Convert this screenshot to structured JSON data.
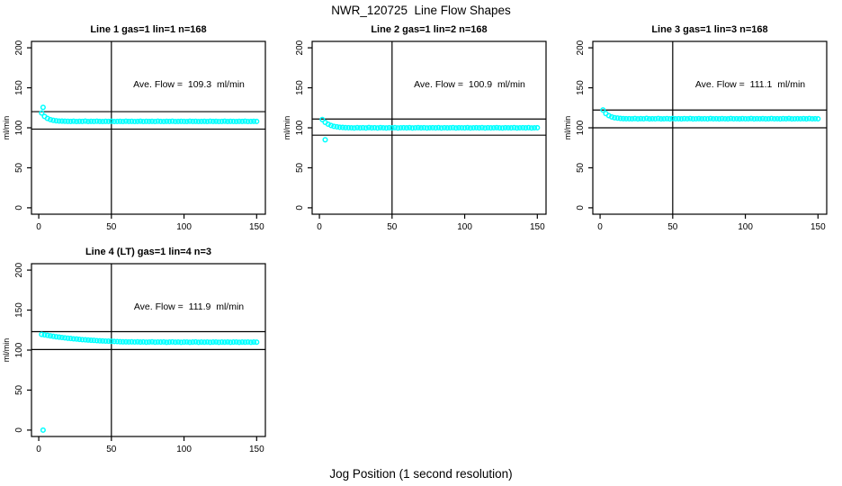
{
  "chart_data": {
    "type": "scatter",
    "title": "NWR_120725  Line Flow Shapes",
    "xlabel": "Jog Position (1 second resolution)",
    "ylabel": "ml/min",
    "point_color": "#00FFFF",
    "axis_color": "#000000",
    "background": "#ffffff",
    "xlim": [
      -5,
      156
    ],
    "ylim": [
      -8,
      208
    ],
    "xticks": [
      0,
      50,
      100,
      150
    ],
    "yticks": [
      0,
      50,
      100,
      150,
      200
    ],
    "grid": "off",
    "legend": "none",
    "x": [
      2,
      4,
      6,
      8,
      10,
      12,
      14,
      16,
      18,
      20,
      22,
      24,
      26,
      28,
      30,
      32,
      34,
      36,
      38,
      40,
      42,
      44,
      46,
      48,
      50,
      52,
      54,
      56,
      58,
      60,
      62,
      64,
      66,
      68,
      70,
      72,
      74,
      76,
      78,
      80,
      82,
      84,
      86,
      88,
      90,
      92,
      94,
      96,
      98,
      100,
      102,
      104,
      106,
      108,
      110,
      112,
      114,
      116,
      118,
      120,
      122,
      124,
      126,
      128,
      130,
      132,
      134,
      136,
      138,
      140,
      142,
      144,
      146,
      148,
      150
    ],
    "subplots": [
      {
        "title": "Line 1 gas=1 lin=1 n=168",
        "annotation": "Ave. Flow =  109.3  ml/min",
        "ave_flow_ml_min": 109.3,
        "n": 168,
        "vline_x": 50,
        "hlines": [
          120.2,
          98.4
        ],
        "y": [
          118.5,
          114.2,
          111.7,
          110.2,
          109.3,
          108.8,
          108.4,
          108.3,
          108.2,
          108.1,
          108.0,
          108.2,
          107.9,
          108.1,
          108.0,
          108.3,
          107.9,
          108.1,
          108.0,
          108.2,
          108.0,
          107.9,
          108.1,
          108.0,
          108.2,
          107.9,
          108.0,
          108.1,
          107.9,
          108.2,
          108.0,
          108.1,
          107.9,
          108.0,
          108.2,
          107.9,
          108.1,
          108.0,
          108.1,
          107.9,
          108.2,
          108.0,
          107.9,
          108.1,
          108.0,
          108.2,
          107.9,
          108.0,
          108.1,
          108.0,
          107.9,
          108.2,
          108.0,
          108.1,
          107.9,
          108.0,
          108.1,
          107.9,
          108.2,
          108.0,
          108.1,
          107.9,
          108.0,
          108.2,
          107.9,
          108.1,
          108.0,
          107.9,
          108.1,
          108.0,
          108.2,
          107.9,
          108.0,
          108.1,
          108.0
        ],
        "outliers": [
          [
            3,
            125.5
          ]
        ]
      },
      {
        "title": "Line 2 gas=1 lin=2 n=168",
        "annotation": "Ave. Flow =  100.9  ml/min",
        "ave_flow_ml_min": 100.9,
        "n": 168,
        "vline_x": 50,
        "hlines": [
          111.0,
          90.8
        ],
        "y": [
          110.3,
          106.8,
          104.5,
          102.9,
          101.8,
          101.2,
          100.7,
          100.4,
          100.2,
          100.1,
          100.0,
          99.8,
          100.2,
          99.9,
          100.1,
          99.8,
          100.3,
          99.9,
          100.1,
          99.8,
          100.2,
          100.0,
          99.8,
          100.1,
          99.9,
          100.2,
          99.8,
          100.0,
          100.1,
          99.9,
          100.2,
          99.8,
          100.0,
          100.2,
          99.9,
          100.1,
          99.8,
          100.0,
          100.1,
          99.9,
          100.2,
          99.8,
          100.1,
          99.9,
          100.0,
          100.2,
          99.8,
          100.1,
          100.0,
          99.9,
          100.2,
          99.8,
          100.0,
          100.1,
          99.9,
          100.2,
          99.8,
          100.1,
          99.9,
          100.0,
          100.2,
          99.9,
          99.8,
          100.1,
          100.0,
          99.9,
          100.2,
          99.8,
          100.0,
          100.1,
          99.9,
          100.2,
          99.8,
          100.0,
          100.1
        ],
        "outliers": [
          [
            4,
            85.0
          ]
        ]
      },
      {
        "title": "Line 3 gas=1 lin=3 n=168",
        "annotation": "Ave. Flow =  111.1  ml/min",
        "ave_flow_ml_min": 111.1,
        "n": 168,
        "vline_x": 50,
        "hlines": [
          122.2,
          100.0
        ],
        "y": [
          122.3,
          117.8,
          115.2,
          113.6,
          112.6,
          112.1,
          111.7,
          111.5,
          111.4,
          111.4,
          111.2,
          111.6,
          111.1,
          111.5,
          111.2,
          111.7,
          111.1,
          111.4,
          111.2,
          111.6,
          111.1,
          111.3,
          111.5,
          111.1,
          111.6,
          111.2,
          111.4,
          111.1,
          111.5,
          111.2,
          111.6,
          111.1,
          111.3,
          111.5,
          111.2,
          111.4,
          111.1,
          111.6,
          111.2,
          111.4,
          111.1,
          111.5,
          111.3,
          111.1,
          111.6,
          111.2,
          111.4,
          111.1,
          111.5,
          111.2,
          111.3,
          111.6,
          111.1,
          111.4,
          111.2,
          111.5,
          111.1,
          111.3,
          111.6,
          111.2,
          111.4,
          111.1,
          111.5,
          111.2,
          111.6,
          111.1,
          111.3,
          111.4,
          111.2,
          111.5,
          111.1,
          111.6,
          111.2,
          111.4,
          111.3
        ],
        "outliers": []
      },
      {
        "title": "Line 4 (LT) gas=1 lin=4 n=3",
        "annotation": "Ave. Flow =  111.9  ml/min",
        "ave_flow_ml_min": 111.9,
        "n": 3,
        "vline_x": 50,
        "hlines": [
          123.1,
          100.7
        ],
        "y": [
          119.6,
          119.0,
          118.4,
          117.8,
          117.2,
          116.7,
          116.2,
          115.7,
          115.3,
          114.9,
          114.5,
          114.1,
          113.8,
          113.4,
          113.1,
          112.8,
          112.6,
          112.3,
          112.1,
          111.8,
          111.6,
          111.5,
          111.3,
          111.1,
          111.0,
          110.8,
          110.7,
          110.5,
          110.4,
          110.3,
          110.2,
          110.4,
          110.1,
          110.3,
          110.0,
          110.2,
          109.9,
          110.1,
          110.3,
          109.9,
          110.1,
          110.0,
          110.2,
          109.8,
          110.0,
          110.2,
          109.9,
          110.1,
          109.8,
          110.0,
          110.1,
          109.8,
          110.0,
          110.2,
          109.8,
          110.0,
          109.9,
          110.1,
          109.8,
          110.0,
          110.1,
          109.8,
          110.0,
          109.9,
          110.1,
          109.8,
          110.0,
          110.1,
          109.8,
          110.0,
          109.9,
          110.1,
          109.8,
          110.0,
          109.9
        ],
        "outliers": [
          [
            3,
            0.0
          ]
        ]
      }
    ]
  }
}
